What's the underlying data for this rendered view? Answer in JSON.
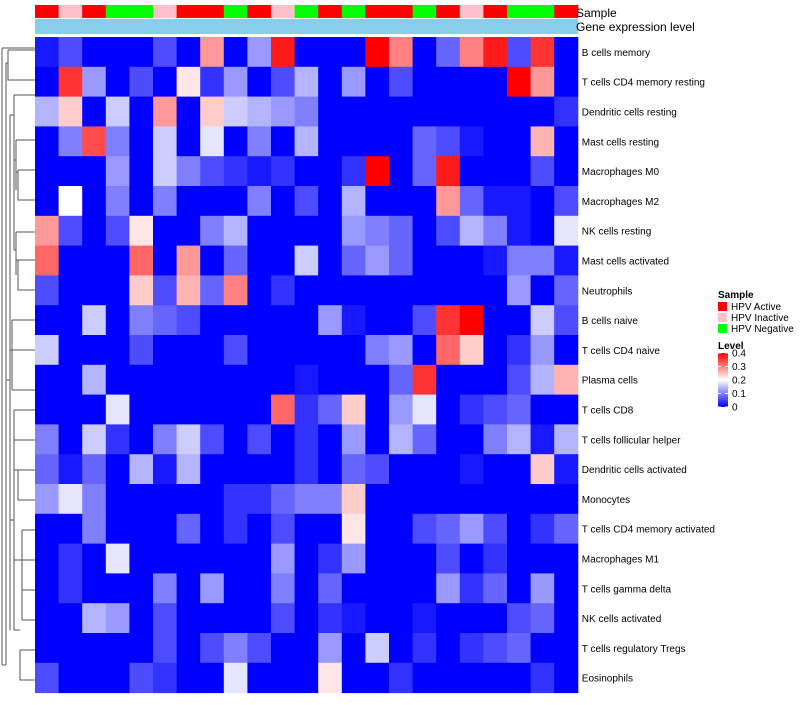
{
  "chart_data": {
    "type": "heatmap",
    "annotation_rows": [
      "Sample",
      "Gene expression level"
    ],
    "sample_groups": [
      "Active",
      "Inactive",
      "Active",
      "Negative",
      "Negative",
      "Inactive",
      "Active",
      "Active",
      "Negative",
      "Active",
      "Inactive",
      "Negative",
      "Active",
      "Negative",
      "Active",
      "Active",
      "Negative",
      "Active",
      "Inactive",
      "Active",
      "Negative",
      "Negative",
      "Active"
    ],
    "sample_legend": {
      "title": "Sample",
      "items": [
        {
          "key": "Active",
          "label": "HPV Active",
          "color": "#ff0000"
        },
        {
          "key": "Inactive",
          "label": "HPV Inactive",
          "color": "#ffc0cb"
        },
        {
          "key": "Negative",
          "label": "HPV Negative",
          "color": "#00ff00"
        }
      ]
    },
    "expression_color": "#87ceeb",
    "level_legend": {
      "title": "Level",
      "min": 0,
      "max": 0.4,
      "ticks": [
        "0.4",
        "0.3",
        "0.2",
        "0.1",
        "0"
      ],
      "tick_values": [
        0.4,
        0.3,
        0.2,
        0.1,
        0
      ],
      "low_color": "#0000ff",
      "mid_color": "#ffffff",
      "high_color": "#ff0000"
    },
    "rows": [
      "B cells memory",
      "T cells CD4 memory resting",
      "Dendritic cells resting",
      "Mast cells resting",
      "Macrophages M0",
      "Macrophages M2",
      "NK cells resting",
      "Mast cells activated",
      "Neutrophils",
      "B cells naive",
      "T cells CD4 naive",
      "Plasma cells",
      "T cells CD8",
      "T cells follicular helper",
      "Dendritic cells activated",
      "Monocytes",
      "T cells CD4 memory activated",
      "Macrophages M1",
      "T cells gamma delta",
      "NK cells activated",
      "T cells regulatory  Tregs",
      "Eosinophils"
    ],
    "values": [
      [
        0.02,
        0.06,
        0.0,
        0.0,
        0.0,
        0.06,
        0.0,
        0.28,
        0.0,
        0.12,
        0.38,
        0.0,
        0.0,
        0.0,
        0.4,
        0.3,
        0.0,
        0.08,
        0.3,
        0.38,
        0.06,
        0.36,
        0.0
      ],
      [
        0.0,
        0.36,
        0.12,
        0.0,
        0.06,
        0.0,
        0.22,
        0.04,
        0.12,
        0.0,
        0.06,
        0.14,
        0.0,
        0.12,
        0.0,
        0.06,
        0.0,
        0.0,
        0.0,
        0.0,
        0.4,
        0.28,
        0.0
      ],
      [
        0.14,
        0.24,
        0.0,
        0.16,
        0.0,
        0.28,
        0.0,
        0.24,
        0.16,
        0.14,
        0.12,
        0.1,
        0.0,
        0.0,
        0.0,
        0.0,
        0.0,
        0.0,
        0.0,
        0.0,
        0.0,
        0.0,
        0.04
      ],
      [
        0.0,
        0.1,
        0.34,
        0.1,
        0.0,
        0.16,
        0.0,
        0.18,
        0.0,
        0.1,
        0.0,
        0.14,
        0.0,
        0.0,
        0.0,
        0.0,
        0.08,
        0.06,
        0.02,
        0.0,
        0.0,
        0.26,
        0.0
      ],
      [
        0.0,
        0.0,
        0.0,
        0.12,
        0.0,
        0.16,
        0.1,
        0.06,
        0.04,
        0.02,
        0.04,
        0.0,
        0.0,
        0.04,
        0.4,
        0.0,
        0.08,
        0.38,
        0.0,
        0.0,
        0.0,
        0.06,
        0.0
      ],
      [
        0.0,
        0.2,
        0.0,
        0.1,
        0.0,
        0.1,
        0.0,
        0.0,
        0.0,
        0.1,
        0.0,
        0.06,
        0.0,
        0.14,
        0.0,
        0.0,
        0.0,
        0.28,
        0.08,
        0.02,
        0.02,
        0.0,
        0.06
      ],
      [
        0.28,
        0.06,
        0.0,
        0.06,
        0.22,
        0.0,
        0.0,
        0.1,
        0.14,
        0.0,
        0.0,
        0.0,
        0.0,
        0.12,
        0.1,
        0.08,
        0.0,
        0.06,
        0.14,
        0.1,
        0.02,
        0.0,
        0.18
      ],
      [
        0.32,
        0.0,
        0.0,
        0.0,
        0.32,
        0.0,
        0.28,
        0.0,
        0.08,
        0.0,
        0.0,
        0.16,
        0.0,
        0.08,
        0.12,
        0.08,
        0.0,
        0.0,
        0.0,
        0.02,
        0.1,
        0.1,
        0.02
      ],
      [
        0.06,
        0.0,
        0.0,
        0.0,
        0.24,
        0.06,
        0.26,
        0.08,
        0.3,
        0.0,
        0.04,
        0.0,
        0.0,
        0.0,
        0.0,
        0.0,
        0.0,
        0.0,
        0.0,
        0.0,
        0.12,
        0.0,
        0.08
      ],
      [
        0.0,
        0.0,
        0.16,
        0.0,
        0.1,
        0.08,
        0.06,
        0.0,
        0.0,
        0.0,
        0.0,
        0.0,
        0.12,
        0.02,
        0.0,
        0.0,
        0.06,
        0.36,
        0.4,
        0.0,
        0.0,
        0.16,
        0.06
      ],
      [
        0.16,
        0.0,
        0.0,
        0.0,
        0.06,
        0.0,
        0.0,
        0.0,
        0.06,
        0.0,
        0.0,
        0.0,
        0.0,
        0.0,
        0.1,
        0.12,
        0.0,
        0.32,
        0.24,
        0.0,
        0.04,
        0.12,
        0.0
      ],
      [
        0.0,
        0.0,
        0.14,
        0.0,
        0.0,
        0.0,
        0.0,
        0.0,
        0.0,
        0.0,
        0.0,
        0.02,
        0.0,
        0.0,
        0.0,
        0.08,
        0.36,
        0.0,
        0.0,
        0.0,
        0.06,
        0.14,
        0.26
      ],
      [
        0.0,
        0.0,
        0.0,
        0.18,
        0.0,
        0.0,
        0.0,
        0.0,
        0.0,
        0.0,
        0.32,
        0.04,
        0.08,
        0.24,
        0.0,
        0.12,
        0.18,
        0.0,
        0.04,
        0.06,
        0.08,
        0.0,
        0.0
      ],
      [
        0.1,
        0.0,
        0.16,
        0.04,
        0.0,
        0.1,
        0.16,
        0.06,
        0.0,
        0.06,
        0.0,
        0.04,
        0.0,
        0.12,
        0.0,
        0.14,
        0.08,
        0.0,
        0.0,
        0.1,
        0.14,
        0.02,
        0.14
      ],
      [
        0.08,
        0.02,
        0.08,
        0.0,
        0.14,
        0.02,
        0.14,
        0.0,
        0.0,
        0.0,
        0.0,
        0.04,
        0.0,
        0.08,
        0.06,
        0.0,
        0.0,
        0.0,
        0.02,
        0.0,
        0.0,
        0.24,
        0.02
      ],
      [
        0.12,
        0.18,
        0.1,
        0.0,
        0.0,
        0.0,
        0.0,
        0.0,
        0.04,
        0.04,
        0.08,
        0.1,
        0.1,
        0.24,
        0.0,
        0.0,
        0.0,
        0.0,
        0.0,
        0.0,
        0.0,
        0.0,
        0.0
      ],
      [
        0.0,
        0.0,
        0.1,
        0.0,
        0.0,
        0.0,
        0.08,
        0.0,
        0.04,
        0.0,
        0.06,
        0.0,
        0.0,
        0.22,
        0.0,
        0.0,
        0.06,
        0.08,
        0.12,
        0.06,
        0.0,
        0.04,
        0.08
      ],
      [
        0.0,
        0.04,
        0.0,
        0.18,
        0.0,
        0.0,
        0.0,
        0.0,
        0.0,
        0.0,
        0.12,
        0.0,
        0.04,
        0.12,
        0.0,
        0.0,
        0.0,
        0.06,
        0.0,
        0.04,
        0.0,
        0.0,
        0.0
      ],
      [
        0.0,
        0.04,
        0.0,
        0.0,
        0.0,
        0.1,
        0.0,
        0.12,
        0.0,
        0.0,
        0.1,
        0.0,
        0.08,
        0.0,
        0.0,
        0.0,
        0.0,
        0.12,
        0.04,
        0.08,
        0.0,
        0.12,
        0.0
      ],
      [
        0.0,
        0.0,
        0.14,
        0.12,
        0.0,
        0.06,
        0.0,
        0.0,
        0.0,
        0.0,
        0.06,
        0.0,
        0.04,
        0.02,
        0.0,
        0.0,
        0.02,
        0.0,
        0.0,
        0.0,
        0.06,
        0.08,
        0.0
      ],
      [
        0.0,
        0.0,
        0.0,
        0.0,
        0.0,
        0.06,
        0.0,
        0.06,
        0.1,
        0.06,
        0.0,
        0.0,
        0.12,
        0.0,
        0.16,
        0.0,
        0.04,
        0.0,
        0.04,
        0.06,
        0.08,
        0.0,
        0.0
      ],
      [
        0.06,
        0.0,
        0.0,
        0.0,
        0.06,
        0.04,
        0.0,
        0.0,
        0.18,
        0.0,
        0.0,
        0.0,
        0.22,
        0.0,
        0.0,
        0.04,
        0.0,
        0.0,
        0.0,
        0.0,
        0.0,
        0.04,
        0.0
      ]
    ]
  }
}
